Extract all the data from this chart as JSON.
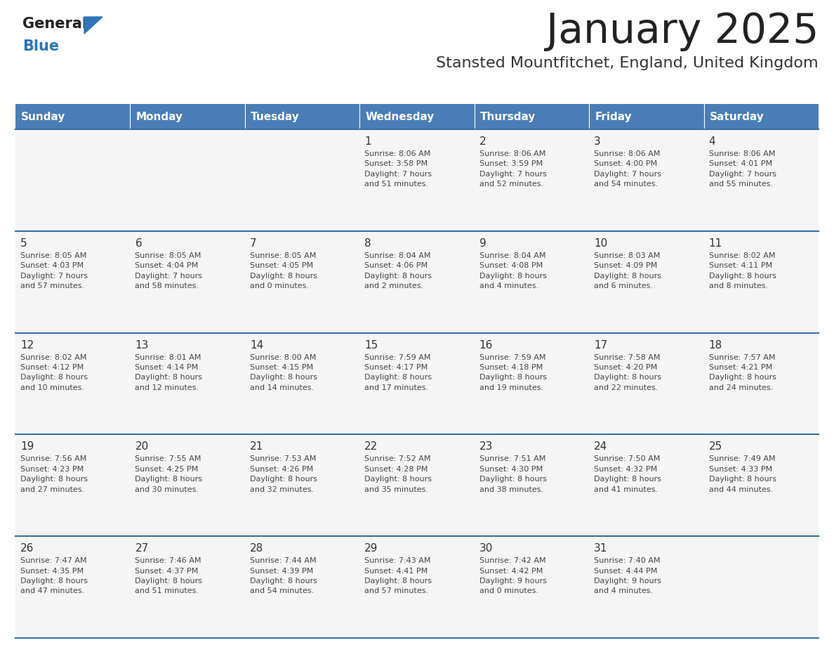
{
  "title": "January 2025",
  "subtitle": "Stansted Mountfitchet, England, United Kingdom",
  "days_of_week": [
    "Sunday",
    "Monday",
    "Tuesday",
    "Wednesday",
    "Thursday",
    "Friday",
    "Saturday"
  ],
  "header_bg": "#4A7DB5",
  "header_text": "#FFFFFF",
  "cell_bg": "#F5F5F5",
  "day_number_color": "#333333",
  "cell_text_color": "#444444",
  "divider_color": "#3A6EA5",
  "title_color": "#222222",
  "subtitle_color": "#333333",
  "logo_general_color": "#222222",
  "logo_blue_color": "#2E75B6",
  "weeks": [
    [
      {
        "day": "",
        "info": ""
      },
      {
        "day": "",
        "info": ""
      },
      {
        "day": "",
        "info": ""
      },
      {
        "day": "1",
        "info": "Sunrise: 8:06 AM\nSunset: 3:58 PM\nDaylight: 7 hours\nand 51 minutes."
      },
      {
        "day": "2",
        "info": "Sunrise: 8:06 AM\nSunset: 3:59 PM\nDaylight: 7 hours\nand 52 minutes."
      },
      {
        "day": "3",
        "info": "Sunrise: 8:06 AM\nSunset: 4:00 PM\nDaylight: 7 hours\nand 54 minutes."
      },
      {
        "day": "4",
        "info": "Sunrise: 8:06 AM\nSunset: 4:01 PM\nDaylight: 7 hours\nand 55 minutes."
      }
    ],
    [
      {
        "day": "5",
        "info": "Sunrise: 8:05 AM\nSunset: 4:03 PM\nDaylight: 7 hours\nand 57 minutes."
      },
      {
        "day": "6",
        "info": "Sunrise: 8:05 AM\nSunset: 4:04 PM\nDaylight: 7 hours\nand 58 minutes."
      },
      {
        "day": "7",
        "info": "Sunrise: 8:05 AM\nSunset: 4:05 PM\nDaylight: 8 hours\nand 0 minutes."
      },
      {
        "day": "8",
        "info": "Sunrise: 8:04 AM\nSunset: 4:06 PM\nDaylight: 8 hours\nand 2 minutes."
      },
      {
        "day": "9",
        "info": "Sunrise: 8:04 AM\nSunset: 4:08 PM\nDaylight: 8 hours\nand 4 minutes."
      },
      {
        "day": "10",
        "info": "Sunrise: 8:03 AM\nSunset: 4:09 PM\nDaylight: 8 hours\nand 6 minutes."
      },
      {
        "day": "11",
        "info": "Sunrise: 8:02 AM\nSunset: 4:11 PM\nDaylight: 8 hours\nand 8 minutes."
      }
    ],
    [
      {
        "day": "12",
        "info": "Sunrise: 8:02 AM\nSunset: 4:12 PM\nDaylight: 8 hours\nand 10 minutes."
      },
      {
        "day": "13",
        "info": "Sunrise: 8:01 AM\nSunset: 4:14 PM\nDaylight: 8 hours\nand 12 minutes."
      },
      {
        "day": "14",
        "info": "Sunrise: 8:00 AM\nSunset: 4:15 PM\nDaylight: 8 hours\nand 14 minutes."
      },
      {
        "day": "15",
        "info": "Sunrise: 7:59 AM\nSunset: 4:17 PM\nDaylight: 8 hours\nand 17 minutes."
      },
      {
        "day": "16",
        "info": "Sunrise: 7:59 AM\nSunset: 4:18 PM\nDaylight: 8 hours\nand 19 minutes."
      },
      {
        "day": "17",
        "info": "Sunrise: 7:58 AM\nSunset: 4:20 PM\nDaylight: 8 hours\nand 22 minutes."
      },
      {
        "day": "18",
        "info": "Sunrise: 7:57 AM\nSunset: 4:21 PM\nDaylight: 8 hours\nand 24 minutes."
      }
    ],
    [
      {
        "day": "19",
        "info": "Sunrise: 7:56 AM\nSunset: 4:23 PM\nDaylight: 8 hours\nand 27 minutes."
      },
      {
        "day": "20",
        "info": "Sunrise: 7:55 AM\nSunset: 4:25 PM\nDaylight: 8 hours\nand 30 minutes."
      },
      {
        "day": "21",
        "info": "Sunrise: 7:53 AM\nSunset: 4:26 PM\nDaylight: 8 hours\nand 32 minutes."
      },
      {
        "day": "22",
        "info": "Sunrise: 7:52 AM\nSunset: 4:28 PM\nDaylight: 8 hours\nand 35 minutes."
      },
      {
        "day": "23",
        "info": "Sunrise: 7:51 AM\nSunset: 4:30 PM\nDaylight: 8 hours\nand 38 minutes."
      },
      {
        "day": "24",
        "info": "Sunrise: 7:50 AM\nSunset: 4:32 PM\nDaylight: 8 hours\nand 41 minutes."
      },
      {
        "day": "25",
        "info": "Sunrise: 7:49 AM\nSunset: 4:33 PM\nDaylight: 8 hours\nand 44 minutes."
      }
    ],
    [
      {
        "day": "26",
        "info": "Sunrise: 7:47 AM\nSunset: 4:35 PM\nDaylight: 8 hours\nand 47 minutes."
      },
      {
        "day": "27",
        "info": "Sunrise: 7:46 AM\nSunset: 4:37 PM\nDaylight: 8 hours\nand 51 minutes."
      },
      {
        "day": "28",
        "info": "Sunrise: 7:44 AM\nSunset: 4:39 PM\nDaylight: 8 hours\nand 54 minutes."
      },
      {
        "day": "29",
        "info": "Sunrise: 7:43 AM\nSunset: 4:41 PM\nDaylight: 8 hours\nand 57 minutes."
      },
      {
        "day": "30",
        "info": "Sunrise: 7:42 AM\nSunset: 4:42 PM\nDaylight: 9 hours\nand 0 minutes."
      },
      {
        "day": "31",
        "info": "Sunrise: 7:40 AM\nSunset: 4:44 PM\nDaylight: 9 hours\nand 4 minutes."
      },
      {
        "day": "",
        "info": ""
      }
    ]
  ]
}
